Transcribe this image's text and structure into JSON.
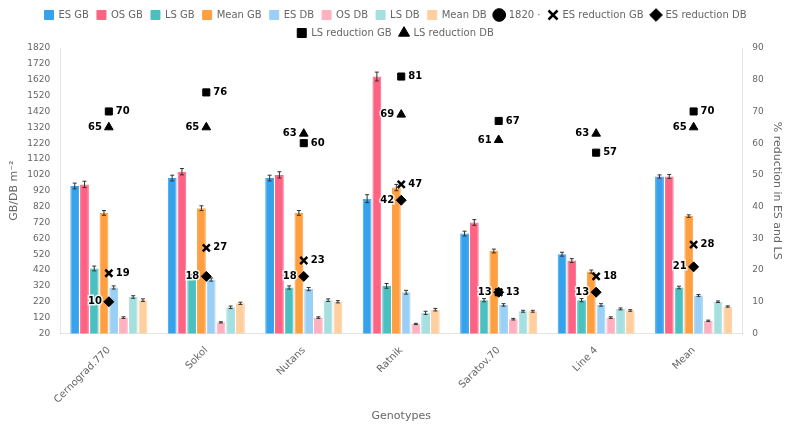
{
  "chart_data": {
    "type": "bar",
    "xlabel": "Genotypes",
    "ylabel": "GB/DB m⁻²",
    "y2label": "% reduction in ES and LS",
    "categories": [
      "Cernograd.770",
      "Sokol",
      "Nutans",
      "Ratnik",
      "Saratov.70",
      "Line 4",
      "Mean"
    ],
    "ylim": [
      20,
      1820
    ],
    "yticks": [
      20,
      120,
      220,
      320,
      420,
      520,
      620,
      720,
      820,
      920,
      1020,
      1120,
      1220,
      1320,
      1420,
      1520,
      1620,
      1720,
      1820
    ],
    "y2lim": [
      0,
      90
    ],
    "y2ticks": [
      0,
      10,
      20,
      30,
      40,
      50,
      60,
      70,
      80,
      90
    ],
    "grid": false,
    "legend": "top",
    "series": [
      {
        "name": "ES GB",
        "color": "#36a2eb",
        "values": [
          950,
          1000,
          1000,
          870,
          650,
          520,
          1010
        ],
        "errors": [
          18,
          18,
          18,
          25,
          15,
          12,
          10
        ]
      },
      {
        "name": "OS GB",
        "color": "#ff6384",
        "values": [
          960,
          1040,
          1020,
          1640,
          720,
          480,
          1010
        ],
        "errors": [
          20,
          20,
          20,
          28,
          18,
          12,
          12
        ]
      },
      {
        "name": "LS GB",
        "color": "#4bc0c0",
        "values": [
          430,
          380,
          310,
          320,
          230,
          230,
          310
        ],
        "errors": [
          15,
          12,
          10,
          15,
          10,
          10,
          8
        ]
      },
      {
        "name": "Mean GB",
        "color": "#ff9f40",
        "values": [
          780,
          810,
          780,
          940,
          540,
          410,
          760
        ],
        "errors": [
          15,
          15,
          15,
          20,
          12,
          10,
          8
        ]
      },
      {
        "name": "ES DB",
        "color": "#9ad0f5",
        "values": [
          310,
          360,
          300,
          280,
          200,
          200,
          260
        ],
        "errors": [
          10,
          10,
          10,
          12,
          8,
          8,
          6
        ]
      },
      {
        "name": "OS DB",
        "color": "#ffb1c1",
        "values": [
          120,
          90,
          120,
          80,
          110,
          120,
          100
        ],
        "errors": [
          5,
          4,
          5,
          4,
          5,
          5,
          4
        ]
      },
      {
        "name": "LS DB",
        "color": "#a5dfdf",
        "values": [
          250,
          185,
          230,
          150,
          160,
          175,
          220
        ],
        "errors": [
          8,
          8,
          8,
          10,
          6,
          6,
          5
        ]
      },
      {
        "name": "Mean DB",
        "color": "#ffcf9f",
        "values": [
          230,
          210,
          220,
          170,
          160,
          165,
          190
        ],
        "errors": [
          8,
          7,
          7,
          8,
          6,
          5,
          4
        ]
      },
      {
        "name": "1820 ·",
        "type": "scatter",
        "axis": "y2",
        "marker": "dot",
        "color": "#000000",
        "values": [
          null,
          null,
          null,
          null,
          null,
          null,
          null
        ]
      },
      {
        "name": "ES reduction GB",
        "type": "scatter",
        "axis": "y2",
        "marker": "x",
        "color": "#000000",
        "data_labels": true,
        "values": [
          19,
          27,
          23,
          47,
          13,
          18,
          28
        ]
      },
      {
        "name": "ES reduction DB",
        "type": "scatter",
        "axis": "y2",
        "marker": "diamond",
        "color": "#000000",
        "data_labels": true,
        "values": [
          10,
          18,
          18,
          42,
          13,
          13,
          21
        ]
      },
      {
        "name": "LS reduction GB",
        "type": "scatter",
        "axis": "y2",
        "marker": "square",
        "color": "#000000",
        "data_labels": true,
        "values": [
          70,
          76,
          60,
          81,
          67,
          57,
          70
        ]
      },
      {
        "name": "LS reduction DB",
        "type": "scatter",
        "axis": "y2",
        "marker": "triangle",
        "color": "#000000",
        "data_labels": true,
        "values": [
          65,
          65,
          63,
          69,
          61,
          63,
          65
        ]
      }
    ]
  }
}
